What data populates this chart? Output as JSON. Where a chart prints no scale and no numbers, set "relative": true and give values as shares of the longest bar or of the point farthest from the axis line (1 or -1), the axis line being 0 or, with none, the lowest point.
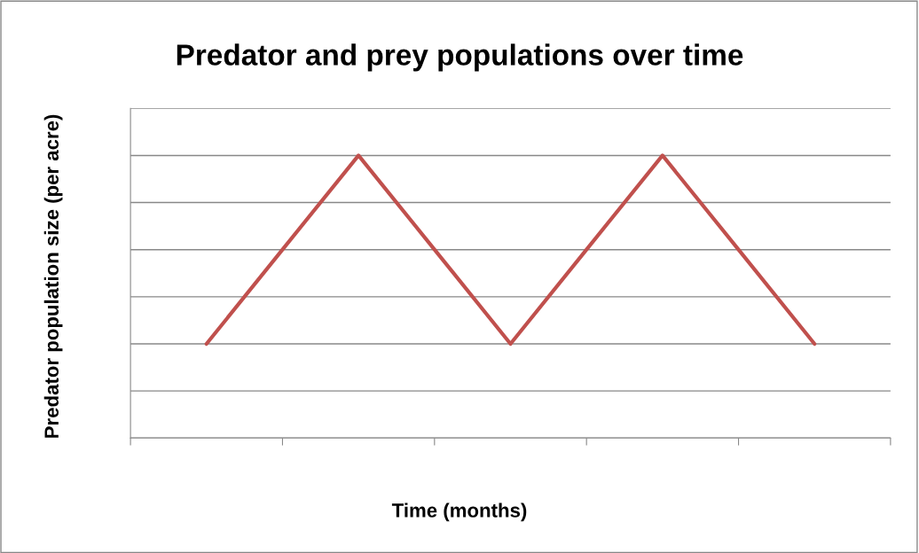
{
  "chart_data": {
    "type": "line",
    "title": "Predator and prey populations over time",
    "xlabel": "Time (months)",
    "ylabel": "Predator population size (per acre)",
    "relative": true,
    "categories": [
      null,
      null,
      null,
      null,
      null,
      null,
      null,
      null,
      null
    ],
    "series": [
      {
        "color": "#c0504d",
        "values": [
          0.333,
          0.667,
          1,
          0.667,
          0.333,
          0.667,
          1,
          0.667,
          0.333
        ]
      }
    ],
    "grid": "y",
    "marker": "none",
    "line_style": "solid"
  }
}
